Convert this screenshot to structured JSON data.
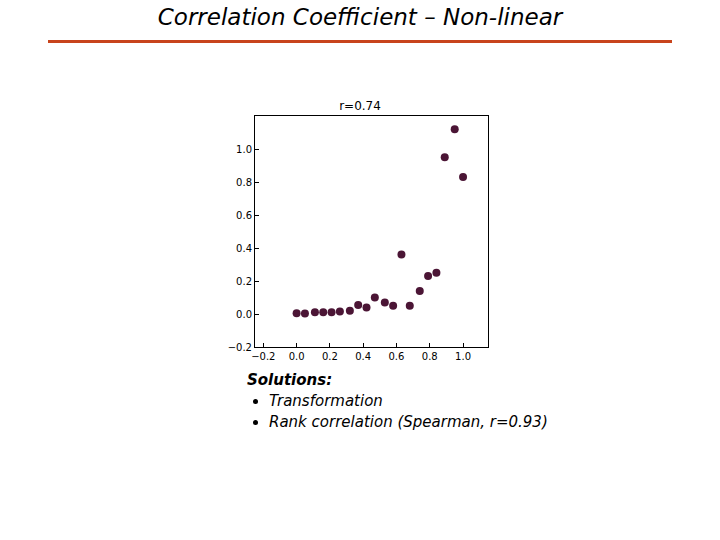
{
  "slide": {
    "title": "Correlation Coefficient – Non-linear",
    "heading": "Solutions:",
    "bullets": [
      "Transformation",
      "Rank correlation (Spearman, r=0.93)"
    ]
  },
  "chart_data": {
    "type": "scatter",
    "title": "r=0.74",
    "x": [
      0.0,
      0.05,
      0.11,
      0.16,
      0.21,
      0.26,
      0.32,
      0.37,
      0.42,
      0.47,
      0.53,
      0.58,
      0.63,
      0.68,
      0.74,
      0.79,
      0.84,
      0.89,
      0.95,
      1.0
    ],
    "values": [
      0.005,
      0.003,
      0.01,
      0.01,
      0.01,
      0.015,
      0.02,
      0.055,
      0.04,
      0.1,
      0.07,
      0.05,
      0.36,
      0.05,
      0.14,
      0.23,
      0.25,
      0.95,
      1.12,
      0.83
    ],
    "color": "#4b1535",
    "marker": "circle",
    "xlim": [
      -0.25,
      1.15
    ],
    "xticks": [
      {
        "value": -0.2,
        "label": "−0.2"
      },
      {
        "value": 0,
        "label": "0.0"
      },
      0.2,
      0.4,
      0.6,
      0.8,
      {
        "value": 1,
        "label": "1.0"
      }
    ],
    "ylim": [
      -0.2,
      1.2
    ],
    "yticks": [
      {
        "value": -0.2,
        "label": "−0.2"
      },
      {
        "value": 0,
        "label": "0.0"
      },
      0.2,
      0.4,
      0.6,
      0.8,
      {
        "value": 1,
        "label": "1.0"
      }
    ],
    "grid": false
  }
}
